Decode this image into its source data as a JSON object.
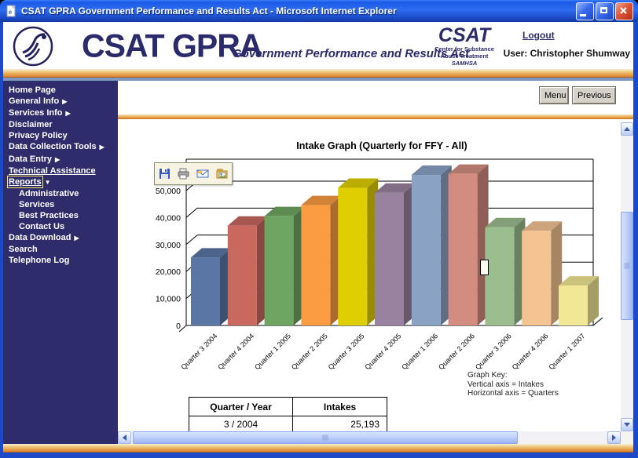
{
  "window": {
    "title": "CSAT GPRA Government Performance and Results Act - Microsoft Internet Explorer"
  },
  "header": {
    "brand": "CSAT  GPRA",
    "tagline": "Government Performance and Results Act",
    "csat_logo": {
      "name": "CSAT",
      "line1": "Center for Substance",
      "line2": "Abuse Treatment",
      "line3": "SAMHSA"
    },
    "logout_label": "Logout",
    "user_label": "User: Christopher Shumway"
  },
  "sidebar": {
    "items": [
      {
        "label": "Home Page"
      },
      {
        "label": "General Info",
        "arrow": "right"
      },
      {
        "label": "Services Info",
        "arrow": "right"
      },
      {
        "label": "Disclaimer"
      },
      {
        "label": "Privacy Policy"
      },
      {
        "label": "Data Collection Tools",
        "arrow": "right"
      },
      {
        "label": "Data Entry",
        "arrow": "right"
      },
      {
        "label": "Technical Assistance",
        "underline": true
      },
      {
        "label": "Reports",
        "arrow": "down",
        "underline": true,
        "focused": true
      },
      {
        "label": "Administrative",
        "indent": true
      },
      {
        "label": "Services",
        "indent": true
      },
      {
        "label": "Best Practices",
        "indent": true
      },
      {
        "label": "Contact Us",
        "indent": true
      },
      {
        "label": "Data Download",
        "arrow": "right"
      },
      {
        "label": "Search"
      },
      {
        "label": "Telephone Log"
      }
    ]
  },
  "toolbar": {
    "menu_label": "Menu",
    "previous_label": "Previous"
  },
  "image_toolbar": {
    "icons": [
      "save-icon",
      "print-icon",
      "email-icon",
      "pictures-folder-icon"
    ]
  },
  "chart_data": {
    "type": "bar",
    "title": "Intake Graph (Quarterly for FFY - All)",
    "categories": [
      "Quarter 3 2004",
      "Quarter 4 2004",
      "Quarter 1 2005",
      "Quarter 2 2005",
      "Quarter 3 2005",
      "Quarter 4 2005",
      "Quarter 1 2006",
      "Quarter 2 2006",
      "Quarter 3 2006",
      "Quarter 4 2006",
      "Quarter 1 2007"
    ],
    "values": [
      25193,
      37000,
      40500,
      44600,
      51000,
      49200,
      55800,
      56200,
      36400,
      35100,
      14800
    ],
    "bar_colors": [
      "#5a76a4",
      "#c8685f",
      "#6fa562",
      "#fb9c43",
      "#e0cf00",
      "#99829f",
      "#8aa3c4",
      "#d38c80",
      "#9cbd8e",
      "#f4c392",
      "#f2e794"
    ],
    "xlabel": "Quarters",
    "ylabel": "Intakes",
    "ylim": [
      0,
      50000
    ],
    "ytick_step": 10000,
    "yticks": [
      "0",
      "10,000",
      "20,000",
      "30,000",
      "40,000",
      "50,000"
    ],
    "grid": true,
    "legend": false,
    "style": "3d"
  },
  "graph_key": {
    "title": "Graph Key:",
    "vertical": "Vertical axis = Intakes",
    "horizontal": "Horizontal axis = Quarters"
  },
  "table": {
    "headers": [
      "Quarter / Year",
      "Intakes"
    ],
    "rows": [
      [
        "3 / 2004",
        "25,193"
      ]
    ],
    "has_partial_next_row": true
  },
  "colors": {
    "navy": "#2b2a6a",
    "sidebar_bg": "#2e2c6a",
    "band_orange": "#e9a14d",
    "focus_yellow": "#ffe95e",
    "titlebar_blue": "#2e6cf0"
  }
}
